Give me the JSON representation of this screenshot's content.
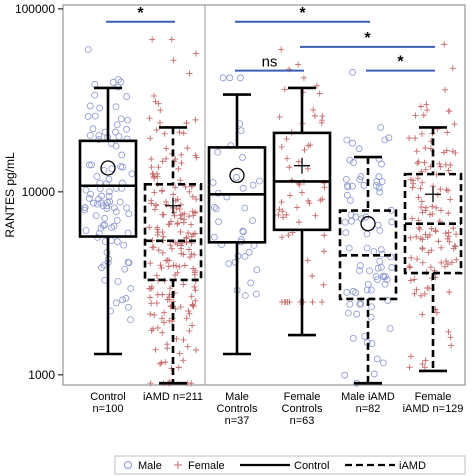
{
  "chart_data": {
    "type": "box",
    "ylabel": "RANTES pg/mL",
    "yscale": "log",
    "ylim": [
      880,
      105000
    ],
    "yticks": [
      {
        "value": 1000,
        "label": "1000"
      },
      {
        "value": 10000,
        "label": "10000"
      },
      {
        "value": 100000,
        "label": "100000"
      }
    ],
    "groups": [
      {
        "key": "control",
        "label_lines": [
          "Control",
          "n=100"
        ],
        "style": "solid",
        "marker": "circle",
        "min": 1300,
        "q1": 5700,
        "median": 10800,
        "q3": 19000,
        "max": 37000,
        "mean": 13500,
        "n": 100,
        "pts_lo": 2000,
        "pts_hi": 60000
      },
      {
        "key": "iamd",
        "label_lines": [
          "iAMD n=211"
        ],
        "style": "dashed",
        "marker": "plus",
        "min": 900,
        "q1": 3300,
        "median": 5400,
        "q3": 11000,
        "max": 22500,
        "mean": 8400,
        "n": 211,
        "pts_lo": 900,
        "pts_hi": 68000
      },
      {
        "key": "male-controls",
        "label_lines": [
          "Male",
          "Controls",
          "n=37"
        ],
        "style": "solid",
        "marker": "circle",
        "min": 1300,
        "q1": 5300,
        "median": 9700,
        "q3": 17500,
        "max": 34000,
        "mean": 12300,
        "n": 37,
        "pts_lo": 2000,
        "pts_hi": 42000
      },
      {
        "key": "female-controls",
        "label_lines": [
          "Female",
          "Controls",
          "n=63"
        ],
        "style": "solid",
        "marker": "plus",
        "min": 1650,
        "q1": 6200,
        "median": 11400,
        "q3": 21000,
        "max": 37000,
        "mean": 13900,
        "n": 63,
        "pts_lo": 2500,
        "pts_hi": 60000
      },
      {
        "key": "male-iamd",
        "label_lines": [
          "Male iAMD",
          "n=82"
        ],
        "style": "dashed",
        "marker": "circle",
        "min": 900,
        "q1": 2600,
        "median": 4500,
        "q3": 7900,
        "max": 15500,
        "mean": 6700,
        "n": 82,
        "pts_lo": 900,
        "pts_hi": 45000
      },
      {
        "key": "female-iamd",
        "label_lines": [
          "Female",
          "iAMD n=129"
        ],
        "style": "dashed",
        "marker": "plus",
        "min": 1050,
        "q1": 3600,
        "median": 6700,
        "q3": 12500,
        "max": 22500,
        "mean": 9700,
        "n": 129,
        "pts_lo": 1100,
        "pts_hi": 68000
      }
    ],
    "comparisons": [
      {
        "from": 0,
        "to": 1,
        "label": "*",
        "y": 85000
      },
      {
        "from": 2,
        "to": 4,
        "label": "*",
        "y": 85000
      },
      {
        "from": 3,
        "to": 5,
        "label": "*",
        "y": 62000
      },
      {
        "from": 2,
        "to": 3,
        "label": "ns",
        "y": 46000
      },
      {
        "from": 4,
        "to": 5,
        "label": "*",
        "y": 46000
      }
    ],
    "legend": {
      "placement": "bottom",
      "items": [
        {
          "label": "Male",
          "kind": "circle"
        },
        {
          "label": "Female",
          "kind": "plus"
        },
        {
          "label": "Control",
          "kind": "solid-line"
        },
        {
          "label": "iAMD",
          "kind": "dashed-line"
        }
      ]
    },
    "colors": {
      "circle": "#8a96d0",
      "plus": "#c76b6b",
      "bracket": "#3a5fb5",
      "box": "#000000",
      "divider": "#9a9a9a"
    }
  }
}
